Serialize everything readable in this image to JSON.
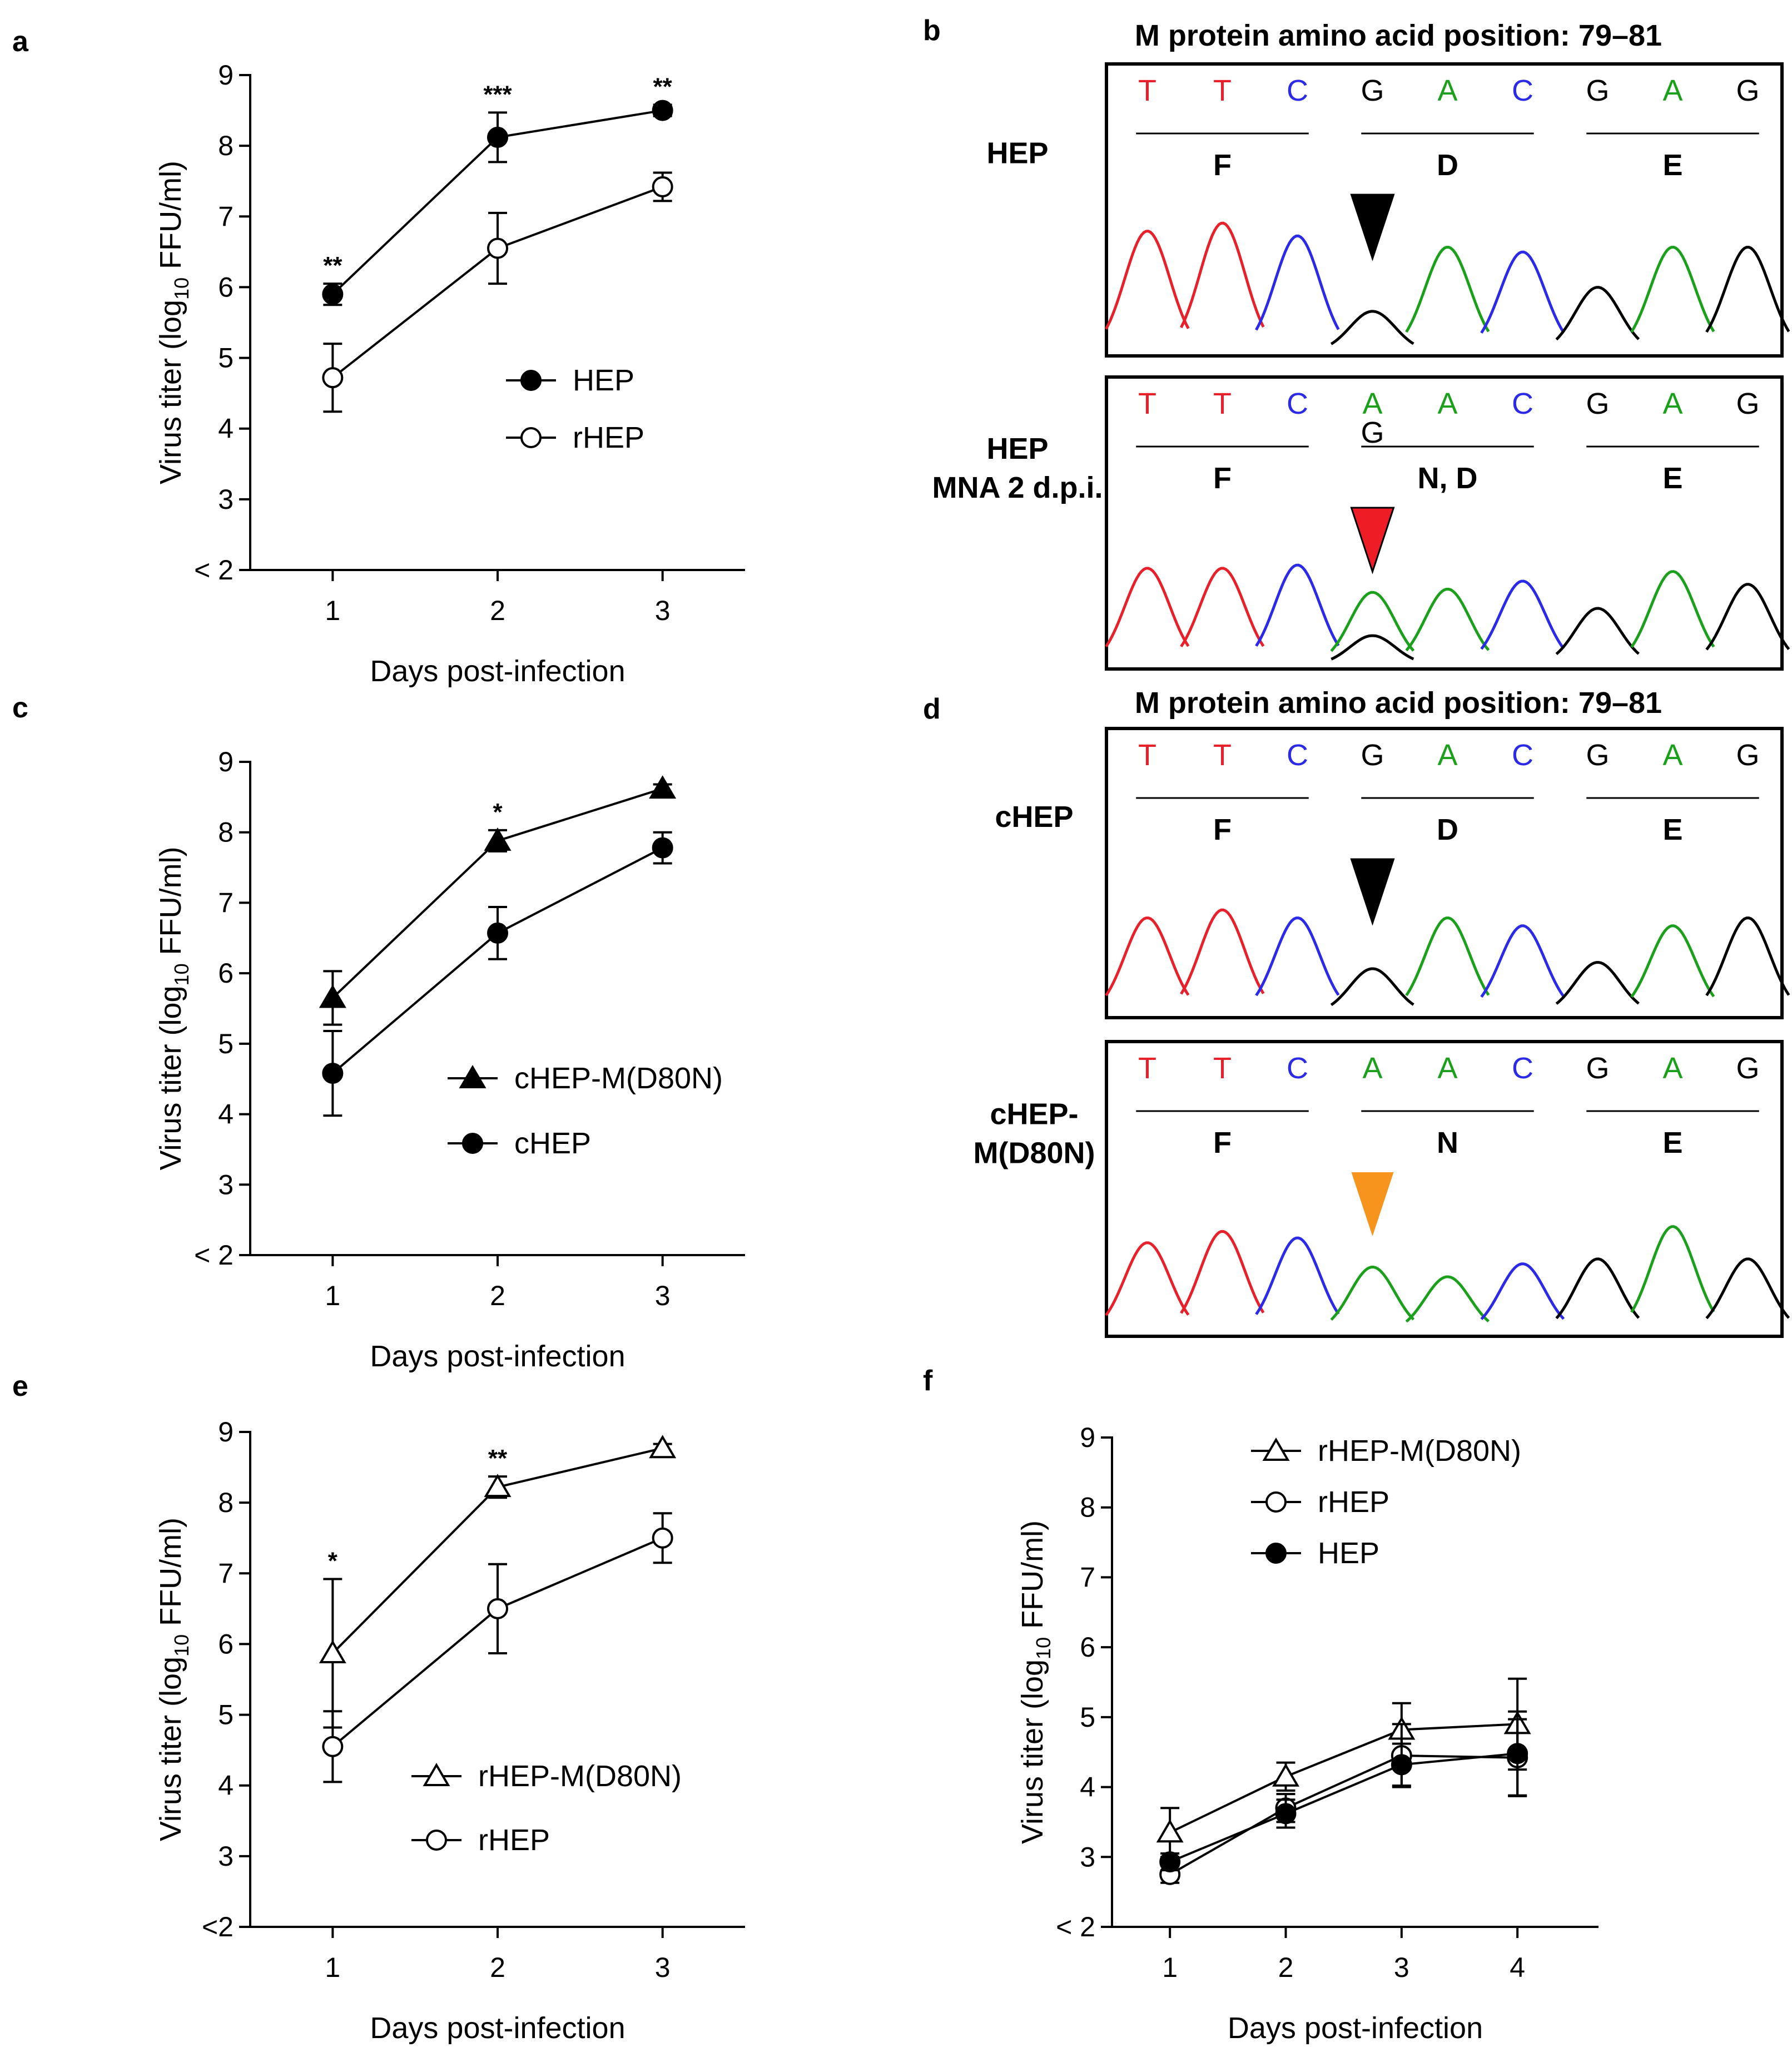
{
  "colors": {
    "A": "#1aa01a",
    "C": "#2a2ae8",
    "G": "#000000",
    "T": "#e8202a",
    "arrow_black": "#000000",
    "arrow_red": "#ee1c24",
    "arrow_orange": "#f7941d"
  },
  "panels": {
    "a": "a",
    "b": "b",
    "c": "c",
    "d": "d",
    "e": "e",
    "f": "f"
  },
  "chart_data": [
    {
      "id": "a",
      "type": "line",
      "xlabel": "Days post-infection",
      "ylabel_main": "Virus titer (log",
      "ylabel_sub": "10",
      "ylabel_tail": " FFU/ml)",
      "x": [
        1,
        2,
        3
      ],
      "xticks": [
        "1",
        "2",
        "3"
      ],
      "xlim": [
        0.5,
        3.5
      ],
      "yticks": [
        "< 2",
        "3",
        "4",
        "5",
        "6",
        "7",
        "8",
        "9"
      ],
      "ylim": [
        2,
        9
      ],
      "series": [
        {
          "name": "HEP",
          "marker": "circle",
          "filled": true,
          "values": [
            5.9,
            8.12,
            8.5
          ],
          "err": [
            0.15,
            0.35,
            0.08
          ]
        },
        {
          "name": "rHEP",
          "marker": "circle",
          "filled": false,
          "values": [
            4.72,
            6.55,
            7.42
          ],
          "err": [
            0.48,
            0.5,
            0.2
          ]
        }
      ],
      "significance": [
        "**",
        "***",
        "**"
      ]
    },
    {
      "id": "c",
      "type": "line",
      "xlabel": "Days post-infection",
      "ylabel_main": "Virus titer (log",
      "ylabel_sub": "10",
      "ylabel_tail": " FFU/ml)",
      "x": [
        1,
        2,
        3
      ],
      "xticks": [
        "1",
        "2",
        "3"
      ],
      "xlim": [
        0.5,
        3.5
      ],
      "yticks": [
        "< 2",
        "3",
        "4",
        "5",
        "6",
        "7",
        "8",
        "9"
      ],
      "ylim": [
        2,
        9
      ],
      "series": [
        {
          "name": "cHEP-M(D80N)",
          "marker": "triangle",
          "filled": true,
          "values": [
            5.65,
            7.88,
            8.62
          ],
          "err": [
            0.38,
            0.15,
            0.06
          ]
        },
        {
          "name": "cHEP",
          "marker": "circle",
          "filled": true,
          "values": [
            4.58,
            6.57,
            7.78
          ],
          "err": [
            0.6,
            0.37,
            0.22
          ]
        }
      ],
      "significance": [
        "",
        "*",
        ""
      ]
    },
    {
      "id": "e",
      "type": "line",
      "xlabel": "Days post-infection",
      "ylabel_main": "Virus titer (log",
      "ylabel_sub": "10",
      "ylabel_tail": " FFU/ml)",
      "x": [
        1,
        2,
        3
      ],
      "xticks": [
        "1",
        "2",
        "3"
      ],
      "xlim": [
        0.5,
        3.5
      ],
      "yticks": [
        "<2",
        "3",
        "4",
        "5",
        "6",
        "7",
        "8",
        "9"
      ],
      "ylim": [
        2,
        9
      ],
      "series": [
        {
          "name": "rHEP-M(D80N)",
          "marker": "triangle",
          "filled": false,
          "values": [
            5.87,
            8.22,
            8.77
          ],
          "err": [
            1.05,
            0.15,
            0.06
          ]
        },
        {
          "name": "rHEP",
          "marker": "circle",
          "filled": false,
          "values": [
            4.55,
            6.5,
            7.5
          ],
          "err": [
            0.5,
            0.63,
            0.35
          ]
        }
      ],
      "significance": [
        "*",
        "**",
        ""
      ]
    },
    {
      "id": "f",
      "type": "line",
      "xlabel": "Days post-infection",
      "ylabel_main": "Virus titer (log",
      "ylabel_sub": "10",
      "ylabel_tail": " FFU/ml)",
      "x": [
        1,
        2,
        3,
        4
      ],
      "xticks": [
        "1",
        "2",
        "3",
        "4"
      ],
      "xlim": [
        0.5,
        4.7
      ],
      "yticks": [
        "< 2",
        "3",
        "4",
        "5",
        "6",
        "7",
        "8",
        "9"
      ],
      "ylim": [
        2,
        9
      ],
      "series": [
        {
          "name": "rHEP-M(D80N)",
          "marker": "triangle",
          "filled": false,
          "values": [
            3.35,
            4.15,
            4.82,
            4.9
          ],
          "err": [
            0.35,
            0.2,
            0.38,
            0.65
          ]
        },
        {
          "name": "rHEP",
          "marker": "circle",
          "filled": false,
          "values": [
            2.75,
            3.7,
            4.45,
            4.42
          ],
          "err": [
            0.12,
            0.2,
            0.45,
            0.55
          ]
        },
        {
          "name": "HEP",
          "marker": "circle",
          "filled": true,
          "values": [
            2.93,
            3.62,
            4.32,
            4.48
          ],
          "err": [
            0.12,
            0.2,
            0.3,
            0.6
          ]
        }
      ],
      "significance": [
        "",
        "",
        "",
        ""
      ]
    }
  ],
  "chromatograms": {
    "b": {
      "title": "M protein amino acid position: 79–81",
      "tracks": [
        {
          "label": [
            "HEP"
          ],
          "bases": [
            "T",
            "T",
            "C",
            "G",
            "A",
            "C",
            "G",
            "A",
            "G"
          ],
          "aa": [
            "F",
            "D",
            "E"
          ],
          "arrow": "black",
          "ambiguous": "",
          "peaks": [
            [
              "T",
              0.75
            ],
            [
              "T",
              0.8
            ],
            [
              "C",
              0.72
            ],
            [
              "G",
              0.25
            ],
            [
              "A",
              0.65
            ],
            [
              "C",
              0.62
            ],
            [
              "G",
              0.4
            ],
            [
              "A",
              0.65
            ],
            [
              "G",
              0.65
            ]
          ]
        },
        {
          "label": [
            "HEP",
            "MNA 2 d.p.i."
          ],
          "bases": [
            "T",
            "T",
            "C",
            "A",
            "A",
            "C",
            "G",
            "A",
            "G"
          ],
          "aa": [
            "F",
            "N, D",
            "E"
          ],
          "arrow": "red",
          "ambiguous": "G",
          "peaks": [
            [
              "T",
              0.6
            ],
            [
              "T",
              0.6
            ],
            [
              "C",
              0.62
            ],
            [
              "A",
              0.45
            ],
            [
              "A",
              0.47
            ],
            [
              "C",
              0.52
            ],
            [
              "G",
              0.35
            ],
            [
              "A",
              0.58
            ],
            [
              "G",
              0.5
            ]
          ],
          "minor": [
            3,
            "G",
            0.18
          ]
        }
      ]
    },
    "d": {
      "title": "M protein amino acid position: 79–81",
      "tracks": [
        {
          "label": [
            "cHEP"
          ],
          "bases": [
            "T",
            "T",
            "C",
            "G",
            "A",
            "C",
            "G",
            "A",
            "G"
          ],
          "aa": [
            "F",
            "D",
            "E"
          ],
          "arrow": "black",
          "ambiguous": "",
          "peaks": [
            [
              "T",
              0.6
            ],
            [
              "T",
              0.65
            ],
            [
              "C",
              0.6
            ],
            [
              "G",
              0.28
            ],
            [
              "A",
              0.6
            ],
            [
              "C",
              0.55
            ],
            [
              "G",
              0.32
            ],
            [
              "A",
              0.55
            ],
            [
              "G",
              0.6
            ]
          ]
        },
        {
          "label": [
            "cHEP-",
            "M(D80N)"
          ],
          "bases": [
            "T",
            "T",
            "C",
            "A",
            "A",
            "C",
            "G",
            "A",
            "G"
          ],
          "aa": [
            "F",
            "N",
            "E"
          ],
          "arrow": "orange",
          "ambiguous": "",
          "peaks": [
            [
              "T",
              0.55
            ],
            [
              "T",
              0.62
            ],
            [
              "C",
              0.58
            ],
            [
              "A",
              0.4
            ],
            [
              "A",
              0.34
            ],
            [
              "C",
              0.42
            ],
            [
              "G",
              0.45
            ],
            [
              "A",
              0.65
            ],
            [
              "G",
              0.45
            ]
          ]
        }
      ]
    }
  }
}
